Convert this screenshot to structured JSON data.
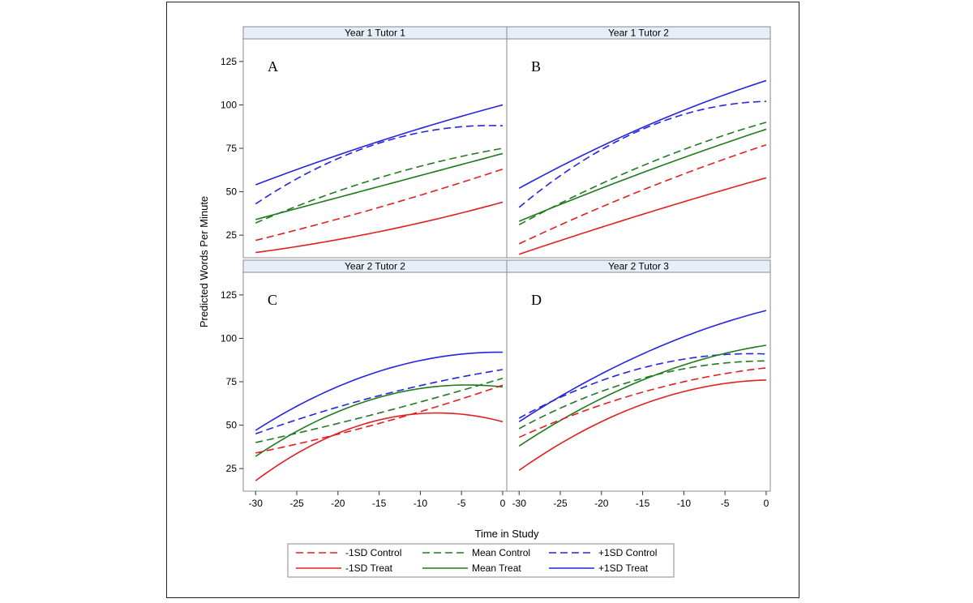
{
  "chart_data": {
    "type": "line",
    "xlabel": "Time in Study",
    "ylabel": "Predicted Words Per Minute",
    "x_ticks": [
      -30,
      -25,
      -20,
      -15,
      -10,
      -5,
      0
    ],
    "y_ticks": [
      25,
      50,
      75,
      100,
      125
    ],
    "xlim": [
      -31.5,
      0.5
    ],
    "ylim": [
      12,
      138
    ],
    "grid": false,
    "legend_position": "bottom",
    "legend": [
      {
        "key": "m1c",
        "label": "-1SD Control",
        "color": "#e02020",
        "dash": true
      },
      {
        "key": "mc",
        "label": "Mean Control",
        "color": "#1f7a1f",
        "dash": true
      },
      {
        "key": "p1c",
        "label": "+1SD Control",
        "color": "#2424e0",
        "dash": true
      },
      {
        "key": "m1t",
        "label": "-1SD Treat",
        "color": "#e02020",
        "dash": false
      },
      {
        "key": "mt",
        "label": "Mean Treat",
        "color": "#1f7a1f",
        "dash": false
      },
      {
        "key": "p1t",
        "label": "+1SD Treat",
        "color": "#2424e0",
        "dash": false
      }
    ],
    "panels": [
      {
        "title": "Year 1 Tutor 1",
        "letter": "A",
        "series": [
          {
            "key": "p1t",
            "x": [
              -30,
              -15,
              0
            ],
            "y": [
              54,
              79,
              100
            ]
          },
          {
            "key": "p1c",
            "x": [
              -30,
              -15,
              0
            ],
            "y": [
              43,
              78,
              88
            ]
          },
          {
            "key": "mc",
            "x": [
              -30,
              -15,
              0
            ],
            "y": [
              32,
              58,
              75
            ]
          },
          {
            "key": "mt",
            "x": [
              -30,
              -15,
              0
            ],
            "y": [
              34,
              53,
              72
            ]
          },
          {
            "key": "m1c",
            "x": [
              -30,
              -15,
              0
            ],
            "y": [
              22,
              41,
              63
            ]
          },
          {
            "key": "m1t",
            "x": [
              -30,
              -15,
              0
            ],
            "y": [
              15,
              27,
              44
            ]
          }
        ]
      },
      {
        "title": "Year 1 Tutor 2",
        "letter": "B",
        "series": [
          {
            "key": "p1t",
            "x": [
              -30,
              -15,
              0
            ],
            "y": [
              52,
              87,
              114
            ]
          },
          {
            "key": "p1c",
            "x": [
              -30,
              -15,
              0
            ],
            "y": [
              41,
              86,
              102
            ]
          },
          {
            "key": "mc",
            "x": [
              -30,
              -15,
              0
            ],
            "y": [
              31,
              65,
              90
            ]
          },
          {
            "key": "mt",
            "x": [
              -30,
              -15,
              0
            ],
            "y": [
              33,
              61,
              86
            ]
          },
          {
            "key": "m1c",
            "x": [
              -30,
              -15,
              0
            ],
            "y": [
              20,
              51,
              77
            ]
          },
          {
            "key": "m1t",
            "x": [
              -30,
              -15,
              0
            ],
            "y": [
              14,
              37,
              58
            ]
          }
        ]
      },
      {
        "title": "Year 2 Tutor 2",
        "letter": "C",
        "series": [
          {
            "key": "p1t",
            "x": [
              -30,
              -15,
              0
            ],
            "y": [
              47,
              81,
              92
            ]
          },
          {
            "key": "p1c",
            "x": [
              -30,
              -15,
              0
            ],
            "y": [
              45,
              67,
              82
            ]
          },
          {
            "key": "mc",
            "x": [
              -30,
              -15,
              0
            ],
            "y": [
              40,
              57,
              77
            ]
          },
          {
            "key": "mt",
            "x": [
              -30,
              -15,
              0
            ],
            "y": [
              32,
              66,
              72
            ]
          },
          {
            "key": "m1c",
            "x": [
              -30,
              -15,
              0
            ],
            "y": [
              34,
              51,
              73
            ]
          },
          {
            "key": "m1t",
            "x": [
              -30,
              -15,
              0
            ],
            "y": [
              18,
              53,
              52
            ]
          }
        ]
      },
      {
        "title": "Year 2 Tutor 3",
        "letter": "D",
        "series": [
          {
            "key": "p1t",
            "x": [
              -30,
              -15,
              0
            ],
            "y": [
              52,
              91,
              116
            ]
          },
          {
            "key": "p1c",
            "x": [
              -30,
              -15,
              0
            ],
            "y": [
              54,
              83,
              91
            ]
          },
          {
            "key": "mc",
            "x": [
              -30,
              -15,
              0
            ],
            "y": [
              48,
              77,
              87
            ]
          },
          {
            "key": "mt",
            "x": [
              -30,
              -15,
              0
            ],
            "y": [
              38,
              76,
              96
            ]
          },
          {
            "key": "m1c",
            "x": [
              -30,
              -15,
              0
            ],
            "y": [
              43,
              69,
              83
            ]
          },
          {
            "key": "m1t",
            "x": [
              -30,
              -15,
              0
            ],
            "y": [
              24,
              62,
              76
            ]
          }
        ]
      }
    ]
  }
}
